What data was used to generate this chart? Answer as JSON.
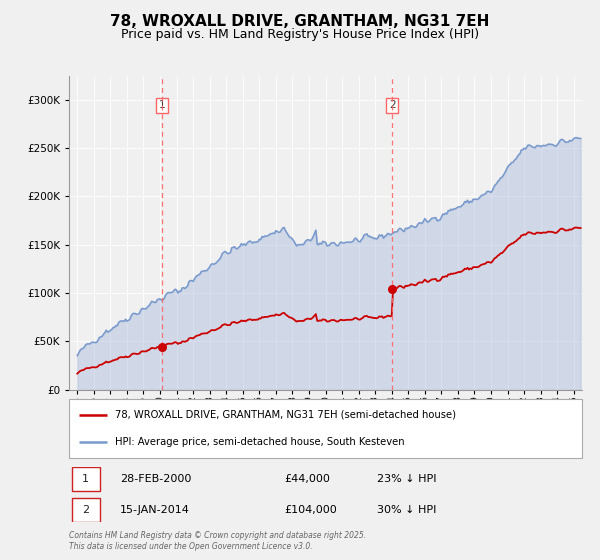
{
  "title": "78, WROXALL DRIVE, GRANTHAM, NG31 7EH",
  "subtitle": "Price paid vs. HM Land Registry's House Price Index (HPI)",
  "title_fontsize": 11,
  "subtitle_fontsize": 9,
  "background_color": "#f0f0f0",
  "plot_bg_color": "#f0f0f0",
  "grid_color": "#ffffff",
  "sale1_date": 2000.12,
  "sale1_price": 44000,
  "sale2_date": 2014.04,
  "sale2_price": 104000,
  "vline_color": "#ff6666",
  "hpi_line_color": "#7799cc",
  "hpi_fill_color": "#aabbdd",
  "property_line_color": "#cc0000",
  "legend_label_property": "78, WROXALL DRIVE, GRANTHAM, NG31 7EH (semi-detached house)",
  "legend_label_hpi": "HPI: Average price, semi-detached house, South Kesteven",
  "table_row1": [
    "1",
    "28-FEB-2000",
    "£44,000",
    "23% ↓ HPI"
  ],
  "table_row2": [
    "2",
    "15-JAN-2014",
    "£104,000",
    "30% ↓ HPI"
  ],
  "copyright_text": "Contains HM Land Registry data © Crown copyright and database right 2025.\nThis data is licensed under the Open Government Licence v3.0.",
  "ylim_max": 325000,
  "ylim_min": 0,
  "xlim_min": 1994.5,
  "xlim_max": 2025.5
}
